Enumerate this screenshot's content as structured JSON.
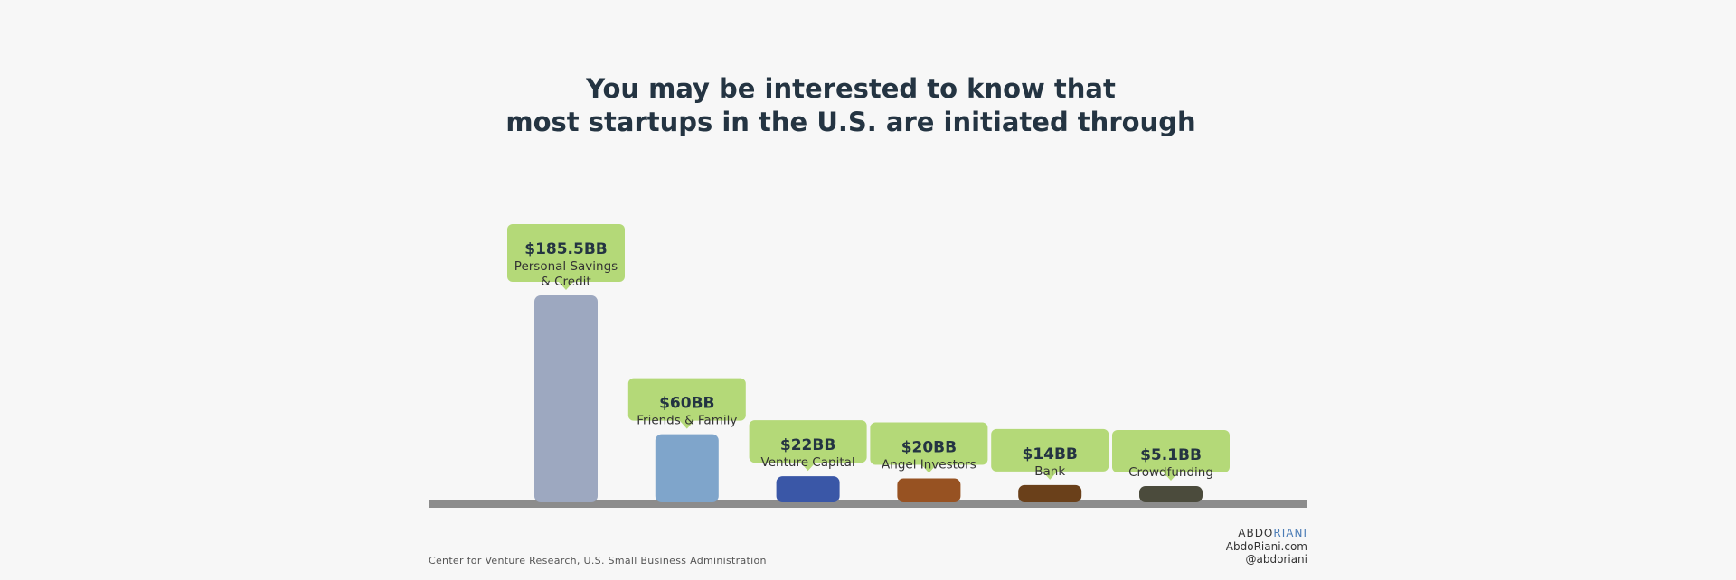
{
  "chart_data": {
    "type": "bar",
    "title_lines": [
      "You may be interested to know that",
      "most startups in the U.S. are initiated through"
    ],
    "categories": [
      "Personal Savings & Credit",
      "Friends & Family",
      "Venture Capital",
      "Angel Investors",
      "Bank",
      "Crowdfunding"
    ],
    "category_lines": [
      [
        "Personal Savings",
        "& Credit"
      ],
      [
        "Friends & Family"
      ],
      [
        "Venture Capital"
      ],
      [
        "Angel Investors"
      ],
      [
        "Bank"
      ],
      [
        "Crowdfunding"
      ]
    ],
    "values": [
      185.5,
      60,
      22,
      20,
      14,
      5.1
    ],
    "value_labels": [
      "$185.5BB",
      "$60BB",
      "$22BB",
      "$20BB",
      "$14BB",
      "$5.1BB"
    ],
    "colors": [
      "#9da8c0",
      "#7fa5cb",
      "#3a57a7",
      "#975222",
      "#6a401a",
      "#4b4b3c"
    ],
    "callout_color": "#b4d978",
    "baseline_color": "#8c8c8c",
    "grid": false,
    "legend": "none"
  },
  "source": "Center for Venture Research, U.S. Small Business Administration",
  "brand": {
    "logo_part1": "ABDO",
    "logo_part2": "RIANI",
    "website": "AbdoRiani.com",
    "handle": "@abdoriani"
  }
}
